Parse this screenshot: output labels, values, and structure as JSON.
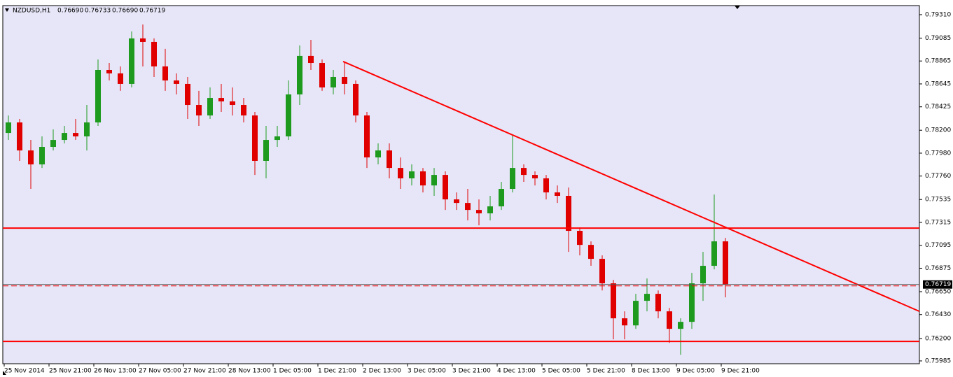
{
  "chart_data": {
    "type": "candlestick",
    "title": "NZDUSD,H1",
    "header_values": [
      "0.76690",
      "0.76733",
      "0.76690",
      "0.76719"
    ],
    "up_color": "#1e9a1e",
    "down_color": "#e00000",
    "line_color": "#ff0000",
    "xlim": [
      -0.5,
      326.75
    ],
    "ylim": [
      0.75958,
      0.79397
    ],
    "xticks": [
      {
        "value": 0,
        "label": "25 Nov 2014"
      },
      {
        "value": 16,
        "label": "25 Nov 21:00"
      },
      {
        "value": 32,
        "label": "26 Nov 13:00"
      },
      {
        "value": 48,
        "label": "27 Nov 05:00"
      },
      {
        "value": 64,
        "label": "27 Nov 21:00"
      },
      {
        "value": 80,
        "label": "28 Nov 13:00"
      },
      {
        "value": 96,
        "label": "1 Dec 05:00"
      },
      {
        "value": 112,
        "label": "1 Dec 21:00"
      },
      {
        "value": 128,
        "label": "2 Dec 13:00"
      },
      {
        "value": 144,
        "label": "3 Dec 05:00"
      },
      {
        "value": 160,
        "label": "3 Dec 21:00"
      },
      {
        "value": 176,
        "label": "4 Dec 13:00"
      },
      {
        "value": 192,
        "label": "5 Dec 05:00"
      },
      {
        "value": 208,
        "label": "5 Dec 21:00"
      },
      {
        "value": 224,
        "label": "8 Dec 13:00"
      },
      {
        "value": 240,
        "label": "9 Dec 05:00"
      },
      {
        "value": 256,
        "label": "9 Dec 21:00"
      }
    ],
    "yticks": [
      {
        "value": 0.7931,
        "label": "0.79310"
      },
      {
        "value": 0.79085,
        "label": "0.79085"
      },
      {
        "value": 0.78865,
        "label": "0.78865"
      },
      {
        "value": 0.78645,
        "label": "0.78645"
      },
      {
        "value": 0.78425,
        "label": "0.78425"
      },
      {
        "value": 0.782,
        "label": "0.78200"
      },
      {
        "value": 0.7798,
        "label": "0.77980"
      },
      {
        "value": 0.7776,
        "label": "0.77760"
      },
      {
        "value": 0.77535,
        "label": "0.77535"
      },
      {
        "value": 0.77315,
        "label": "0.77315"
      },
      {
        "value": 0.77095,
        "label": "0.77095"
      },
      {
        "value": 0.76875,
        "label": "0.76875"
      },
      {
        "value": 0.7665,
        "label": "0.76650"
      },
      {
        "value": 0.7643,
        "label": "0.76430"
      },
      {
        "value": 0.762,
        "label": "0.76200"
      },
      {
        "value": 0.75985,
        "label": "0.75985"
      }
    ],
    "last_price": {
      "value": 0.76719,
      "label": "0.76719"
    },
    "levels": [
      0.7726,
      0.76172
    ],
    "trendline": {
      "x": [
        121,
        326.75
      ],
      "y": [
        0.7886,
        0.76461
      ]
    },
    "x": [
      1.5,
      5.5,
      9.5,
      13.5,
      17.5,
      21.5,
      25.5,
      29.5,
      33.5,
      37.5,
      41.5,
      45.5,
      49.5,
      53.5,
      57.5,
      61.5,
      65.5,
      69.5,
      73.5,
      77.5,
      81.5,
      85.5,
      89.5,
      93.5,
      97.5,
      101.5,
      105.5,
      109.5,
      113.5,
      117.5,
      121.5,
      125.5,
      129.5,
      133.5,
      137.5,
      141.5,
      145.5,
      149.5,
      153.5,
      157.5,
      161.5,
      165.5,
      169.5,
      173.5,
      177.5,
      181.5,
      185.5,
      189.5,
      193.5,
      197.5,
      201.5,
      205.5,
      209.5,
      213.5,
      217.5,
      221.5,
      225.5,
      229.5,
      233.5,
      237.5,
      241.5,
      245.5,
      249.5,
      253.5,
      257.5
    ],
    "open": [
      0.78174,
      0.78275,
      0.78006,
      0.77872,
      0.7804,
      0.78107,
      0.78174,
      0.78141,
      0.78275,
      0.78779,
      0.78746,
      0.78645,
      0.79082,
      0.79048,
      0.78813,
      0.78678,
      0.78645,
      0.78443,
      0.78342,
      0.7851,
      0.78477,
      0.78443,
      0.78342,
      0.77906,
      0.78107,
      0.78141,
      0.78544,
      0.78914,
      0.78846,
      0.78611,
      0.78712,
      0.78645,
      0.78342,
      0.77939,
      0.78006,
      0.77838,
      0.77738,
      0.77805,
      0.7767,
      0.77771,
      0.77536,
      0.77502,
      0.77435,
      0.77402,
      0.77469,
      0.77637,
      0.77838,
      0.77771,
      0.77738,
      0.77603,
      0.7757,
      0.77234,
      0.77099,
      0.76965,
      0.7673,
      0.76394,
      0.76326,
      0.76562,
      0.76629,
      0.76461,
      0.76293,
      0.7636,
      0.7673,
      0.76898,
      0.77133
    ],
    "high": [
      0.78342,
      0.78309,
      0.78107,
      0.78141,
      0.78208,
      0.78242,
      0.78309,
      0.78443,
      0.7888,
      0.78846,
      0.78813,
      0.79149,
      0.79216,
      0.79082,
      0.78981,
      0.78746,
      0.78712,
      0.78578,
      0.78611,
      0.78645,
      0.78611,
      0.7851,
      0.78376,
      0.78242,
      0.78242,
      0.78678,
      0.79014,
      0.79068,
      0.7888,
      0.78779,
      0.7886,
      0.78678,
      0.78376,
      0.78074,
      0.78074,
      0.77939,
      0.77872,
      0.77838,
      0.77838,
      0.77805,
      0.77603,
      0.77637,
      0.77536,
      0.7757,
      0.77704,
      0.78154,
      0.77872,
      0.77805,
      0.77771,
      0.7767,
      0.7765,
      0.77267,
      0.77133,
      0.76998,
      0.76763,
      0.76461,
      0.76629,
      0.76777,
      0.76662,
      0.76494,
      0.76394,
      0.7683,
      0.77032,
      0.77583,
      0.77166
    ],
    "low": [
      0.78107,
      0.77906,
      0.77637,
      0.77838,
      0.78006,
      0.78074,
      0.78107,
      0.78006,
      0.78242,
      0.78678,
      0.78578,
      0.78611,
      0.78813,
      0.78712,
      0.78578,
      0.78544,
      0.78309,
      0.78242,
      0.78309,
      0.78376,
      0.78342,
      0.78275,
      0.77771,
      0.77738,
      0.7804,
      0.78107,
      0.78443,
      0.78779,
      0.78578,
      0.78544,
      0.78544,
      0.78275,
      0.77838,
      0.77872,
      0.77738,
      0.77637,
      0.7767,
      0.77603,
      0.7757,
      0.77435,
      0.77435,
      0.77334,
      0.77287,
      0.77334,
      0.77435,
      0.77603,
      0.77704,
      0.7767,
      0.77536,
      0.77502,
      0.77032,
      0.76998,
      0.76898,
      0.76662,
      0.76192,
      0.76192,
      0.76293,
      0.76461,
      0.76394,
      0.76158,
      0.76044,
      0.76293,
      0.76562,
      0.76864,
      0.76595
    ],
    "close": [
      0.78275,
      0.78006,
      0.77872,
      0.7804,
      0.78107,
      0.78174,
      0.78141,
      0.78275,
      0.78779,
      0.78746,
      0.78645,
      0.79082,
      0.79048,
      0.78813,
      0.78678,
      0.78645,
      0.78443,
      0.78342,
      0.7851,
      0.78477,
      0.78443,
      0.78342,
      0.77906,
      0.78107,
      0.78141,
      0.78544,
      0.78914,
      0.78846,
      0.78611,
      0.78712,
      0.78645,
      0.78342,
      0.77939,
      0.78006,
      0.77838,
      0.77738,
      0.77805,
      0.7767,
      0.77771,
      0.77536,
      0.77502,
      0.77435,
      0.77402,
      0.77469,
      0.77637,
      0.77838,
      0.77771,
      0.77738,
      0.77603,
      0.7757,
      0.77234,
      0.77099,
      0.76965,
      0.7673,
      0.76394,
      0.76326,
      0.76562,
      0.76629,
      0.76461,
      0.76293,
      0.7636,
      0.7673,
      0.76898,
      0.77133,
      0.76719
    ]
  }
}
